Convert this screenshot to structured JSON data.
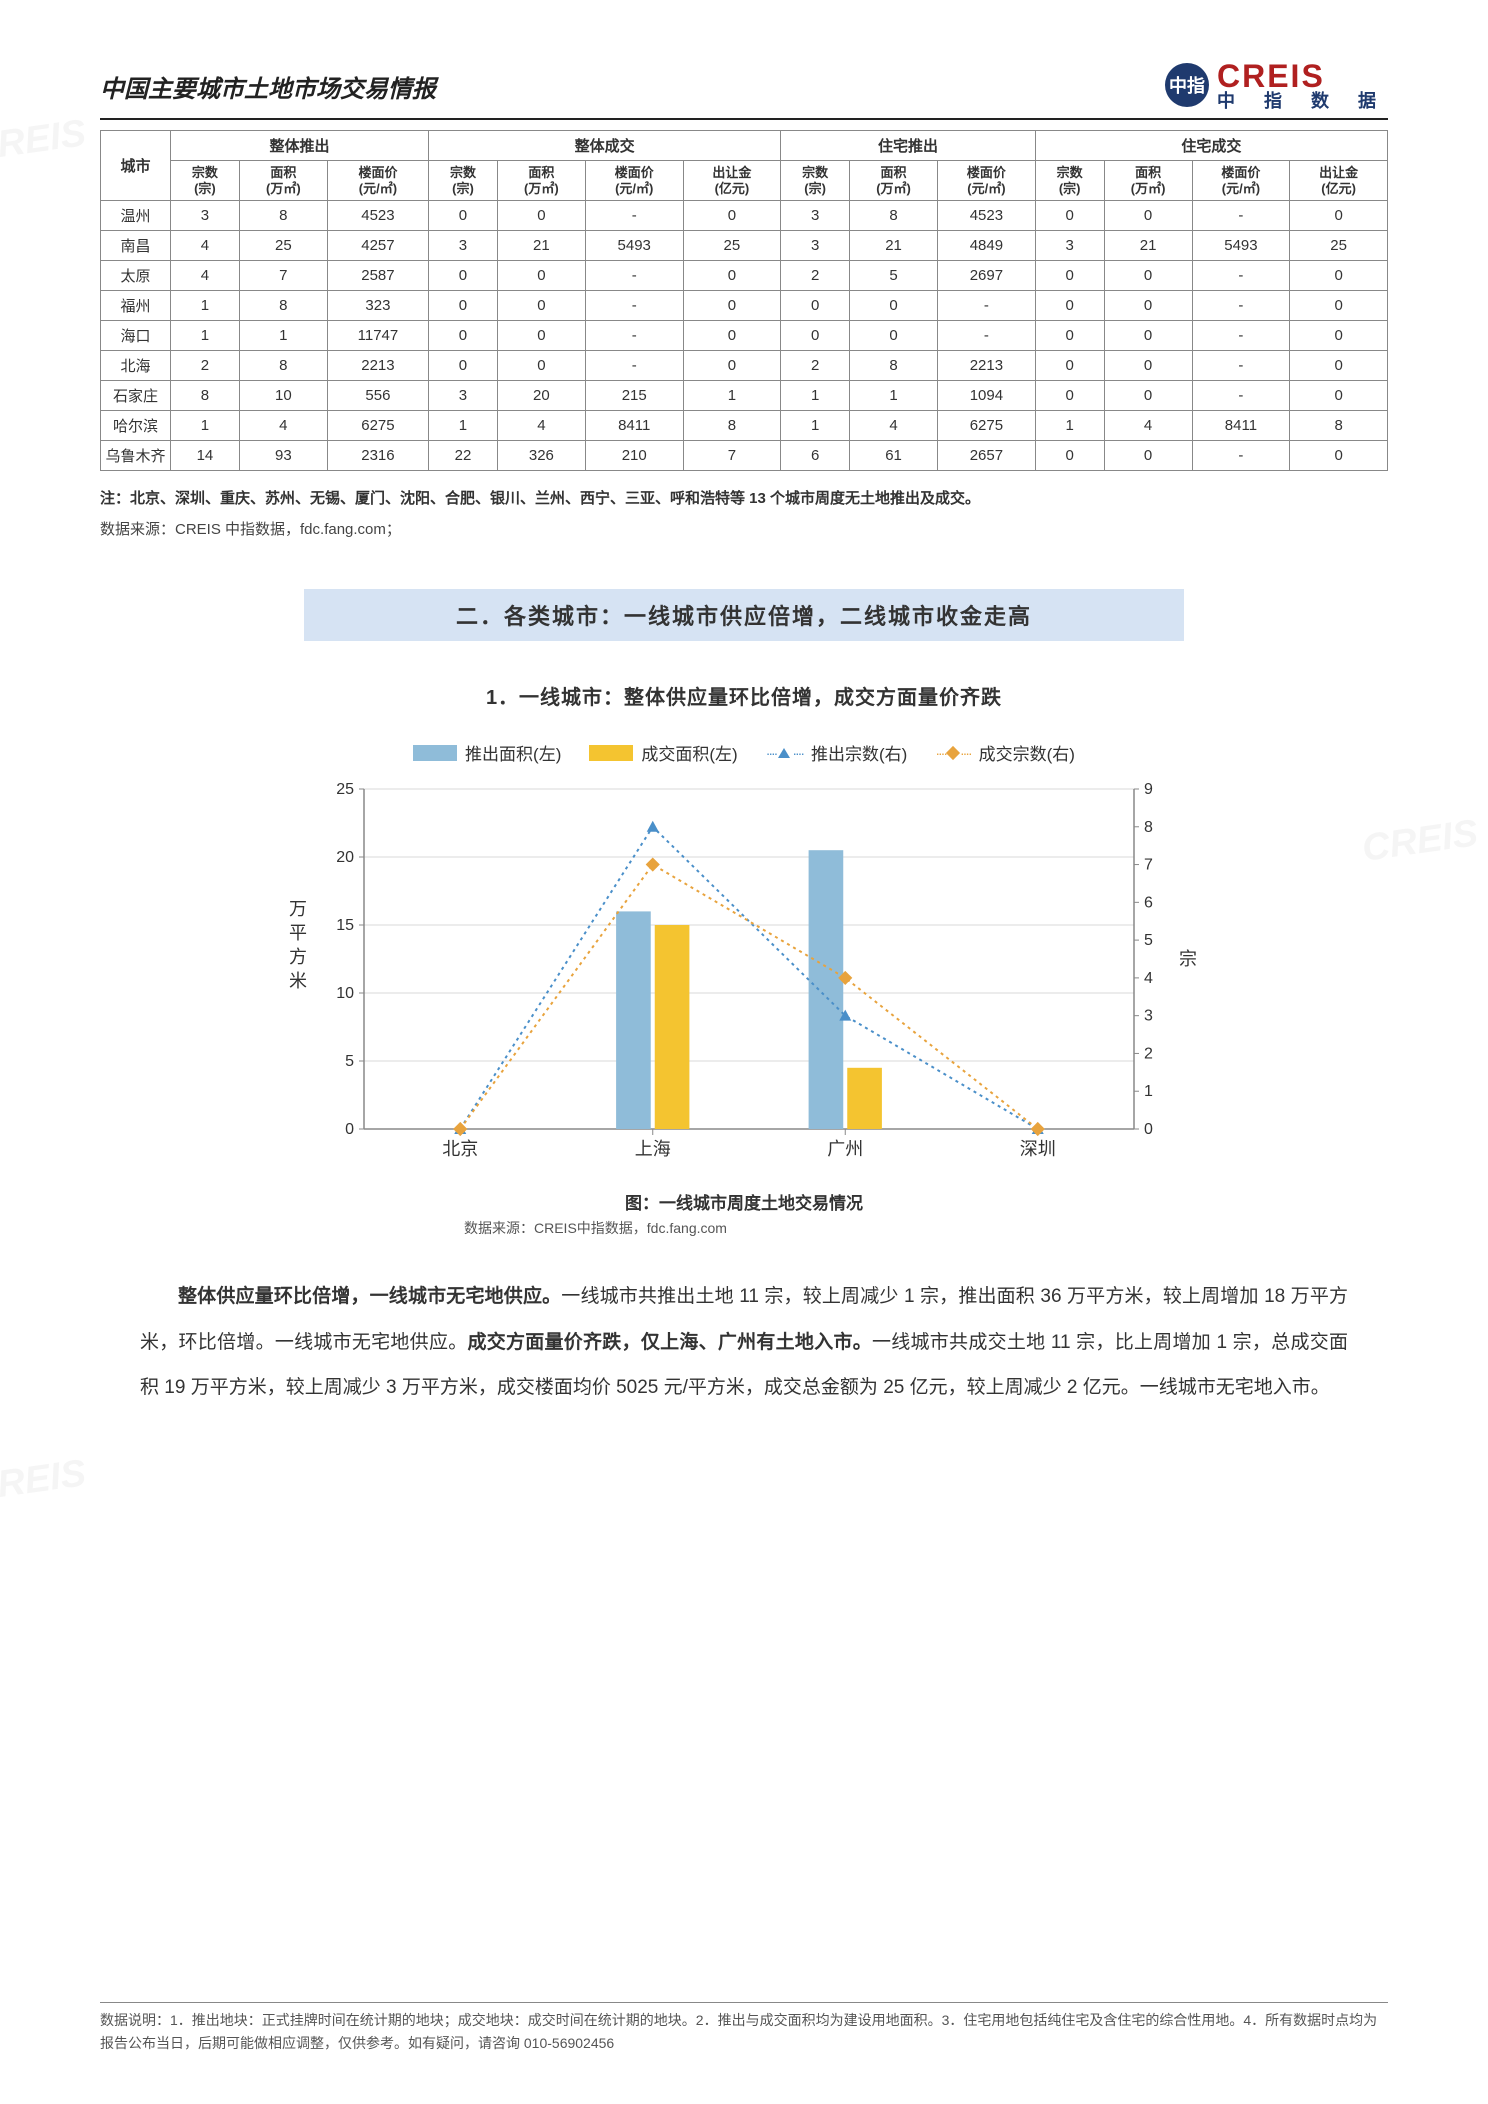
{
  "header": {
    "title": "中国主要城市土地市场交易情报"
  },
  "logo": {
    "badge": "中指",
    "big": "CREIS",
    "small": "中 指 数 据"
  },
  "table": {
    "city_header": "城市",
    "groups": [
      "整体推出",
      "整体成交",
      "住宅推出",
      "住宅成交"
    ],
    "sub_a": [
      "宗数\n(宗)",
      "面积\n(万㎡)",
      "楼面价\n(元/㎡)"
    ],
    "sub_b": [
      "宗数\n(宗)",
      "面积\n(万㎡)",
      "楼面价\n(元/㎡)",
      "出让金\n(亿元)"
    ],
    "rows": [
      {
        "city": "温州",
        "v": [
          "3",
          "8",
          "4523",
          "0",
          "0",
          "-",
          "0",
          "3",
          "8",
          "4523",
          "0",
          "0",
          "-",
          "0"
        ]
      },
      {
        "city": "南昌",
        "v": [
          "4",
          "25",
          "4257",
          "3",
          "21",
          "5493",
          "25",
          "3",
          "21",
          "4849",
          "3",
          "21",
          "5493",
          "25"
        ]
      },
      {
        "city": "太原",
        "v": [
          "4",
          "7",
          "2587",
          "0",
          "0",
          "-",
          "0",
          "2",
          "5",
          "2697",
          "0",
          "0",
          "-",
          "0"
        ]
      },
      {
        "city": "福州",
        "v": [
          "1",
          "8",
          "323",
          "0",
          "0",
          "-",
          "0",
          "0",
          "0",
          "-",
          "0",
          "0",
          "-",
          "0"
        ]
      },
      {
        "city": "海口",
        "v": [
          "1",
          "1",
          "11747",
          "0",
          "0",
          "-",
          "0",
          "0",
          "0",
          "-",
          "0",
          "0",
          "-",
          "0"
        ]
      },
      {
        "city": "北海",
        "v": [
          "2",
          "8",
          "2213",
          "0",
          "0",
          "-",
          "0",
          "2",
          "8",
          "2213",
          "0",
          "0",
          "-",
          "0"
        ]
      },
      {
        "city": "石家庄",
        "v": [
          "8",
          "10",
          "556",
          "3",
          "20",
          "215",
          "1",
          "1",
          "1",
          "1094",
          "0",
          "0",
          "-",
          "0"
        ]
      },
      {
        "city": "哈尔滨",
        "v": [
          "1",
          "4",
          "6275",
          "1",
          "4",
          "8411",
          "8",
          "1",
          "4",
          "6275",
          "1",
          "4",
          "8411",
          "8"
        ]
      },
      {
        "city": "乌鲁木齐",
        "v": [
          "14",
          "93",
          "2316",
          "22",
          "326",
          "210",
          "7",
          "6",
          "61",
          "2657",
          "0",
          "0",
          "-",
          "0"
        ]
      }
    ]
  },
  "note": "注：北京、深圳、重庆、苏州、无锡、厦门、沈阳、合肥、银川、兰州、西宁、三亚、呼和浩特等 13 个城市周度无土地推出及成交。",
  "source1": "数据来源：CREIS 中指数据，fdc.fang.com；",
  "section": "二．各类城市：一线城市供应倍增，二线城市收金走高",
  "subsection": "1．一线城市：整体供应量环比倍增，成交方面量价齐跌",
  "legend": {
    "l1": "推出面积(左)",
    "l2": "成交面积(左)",
    "l3": "推出宗数(右)",
    "l4": "成交宗数(右)"
  },
  "chart": {
    "type": "bar+line",
    "categories": [
      "北京",
      "上海",
      "广州",
      "深圳"
    ],
    "left_label": "万平方米",
    "right_label": "宗",
    "y_left": {
      "min": 0,
      "max": 25,
      "ticks": [
        "0",
        "5",
        "10",
        "15",
        "20",
        "25"
      ]
    },
    "y_right": {
      "min": 0,
      "max": 9,
      "ticks": [
        "0",
        "1",
        "2",
        "3",
        "4",
        "5",
        "6",
        "7",
        "8",
        "9"
      ]
    },
    "bars": {
      "推出面积": {
        "values": [
          0,
          16,
          20.5,
          0
        ],
        "color": "#8fbcd9"
      },
      "成交面积": {
        "values": [
          0,
          15,
          4.5,
          0
        ],
        "color": "#f4c430"
      }
    },
    "lines": {
      "推出宗数": {
        "values": [
          0,
          8,
          3,
          0
        ],
        "color": "#4a8fc9",
        "marker": "triangle"
      },
      "成交宗数": {
        "values": [
          0,
          7,
          4,
          0
        ],
        "color": "#e8a33d",
        "marker": "diamond"
      }
    },
    "bar_width": 0.35,
    "grid_color": "#d9d9d9",
    "axis_color": "#888888",
    "background": "#ffffff",
    "caption": "图：一线城市周度土地交易情况",
    "source": "数据来源：CREIS中指数据，fdc.fang.com"
  },
  "para": "<b>整体供应量环比倍增，一线城市无宅地供应。</b>一线城市共推出土地 11 宗，较上周减少 1 宗，推出面积 36 万平方米，较上周增加 18 万平方米，环比倍增。一线城市无宅地供应。<b>成交方面量价齐跌，仅上海、广州有土地入市。</b>一线城市共成交土地 11 宗，比上周增加 1 宗，总成交面积 19 万平方米，较上周减少 3 万平方米，成交楼面均价 5025 元/平方米，成交总金额为 25 亿元，较上周减少 2 亿元。一线城市无宅地入市。",
  "footer": "数据说明：1．推出地块：正式挂牌时间在统计期的地块；成交地块：成交时间在统计期的地块。2．推出与成交面积均为建设用地面积。3．住宅用地包括纯住宅及含住宅的综合性用地。4．所有数据时点均为报告公布当日，后期可能做相应调整，仅供参考。如有疑问，请咨询 010-56902456"
}
